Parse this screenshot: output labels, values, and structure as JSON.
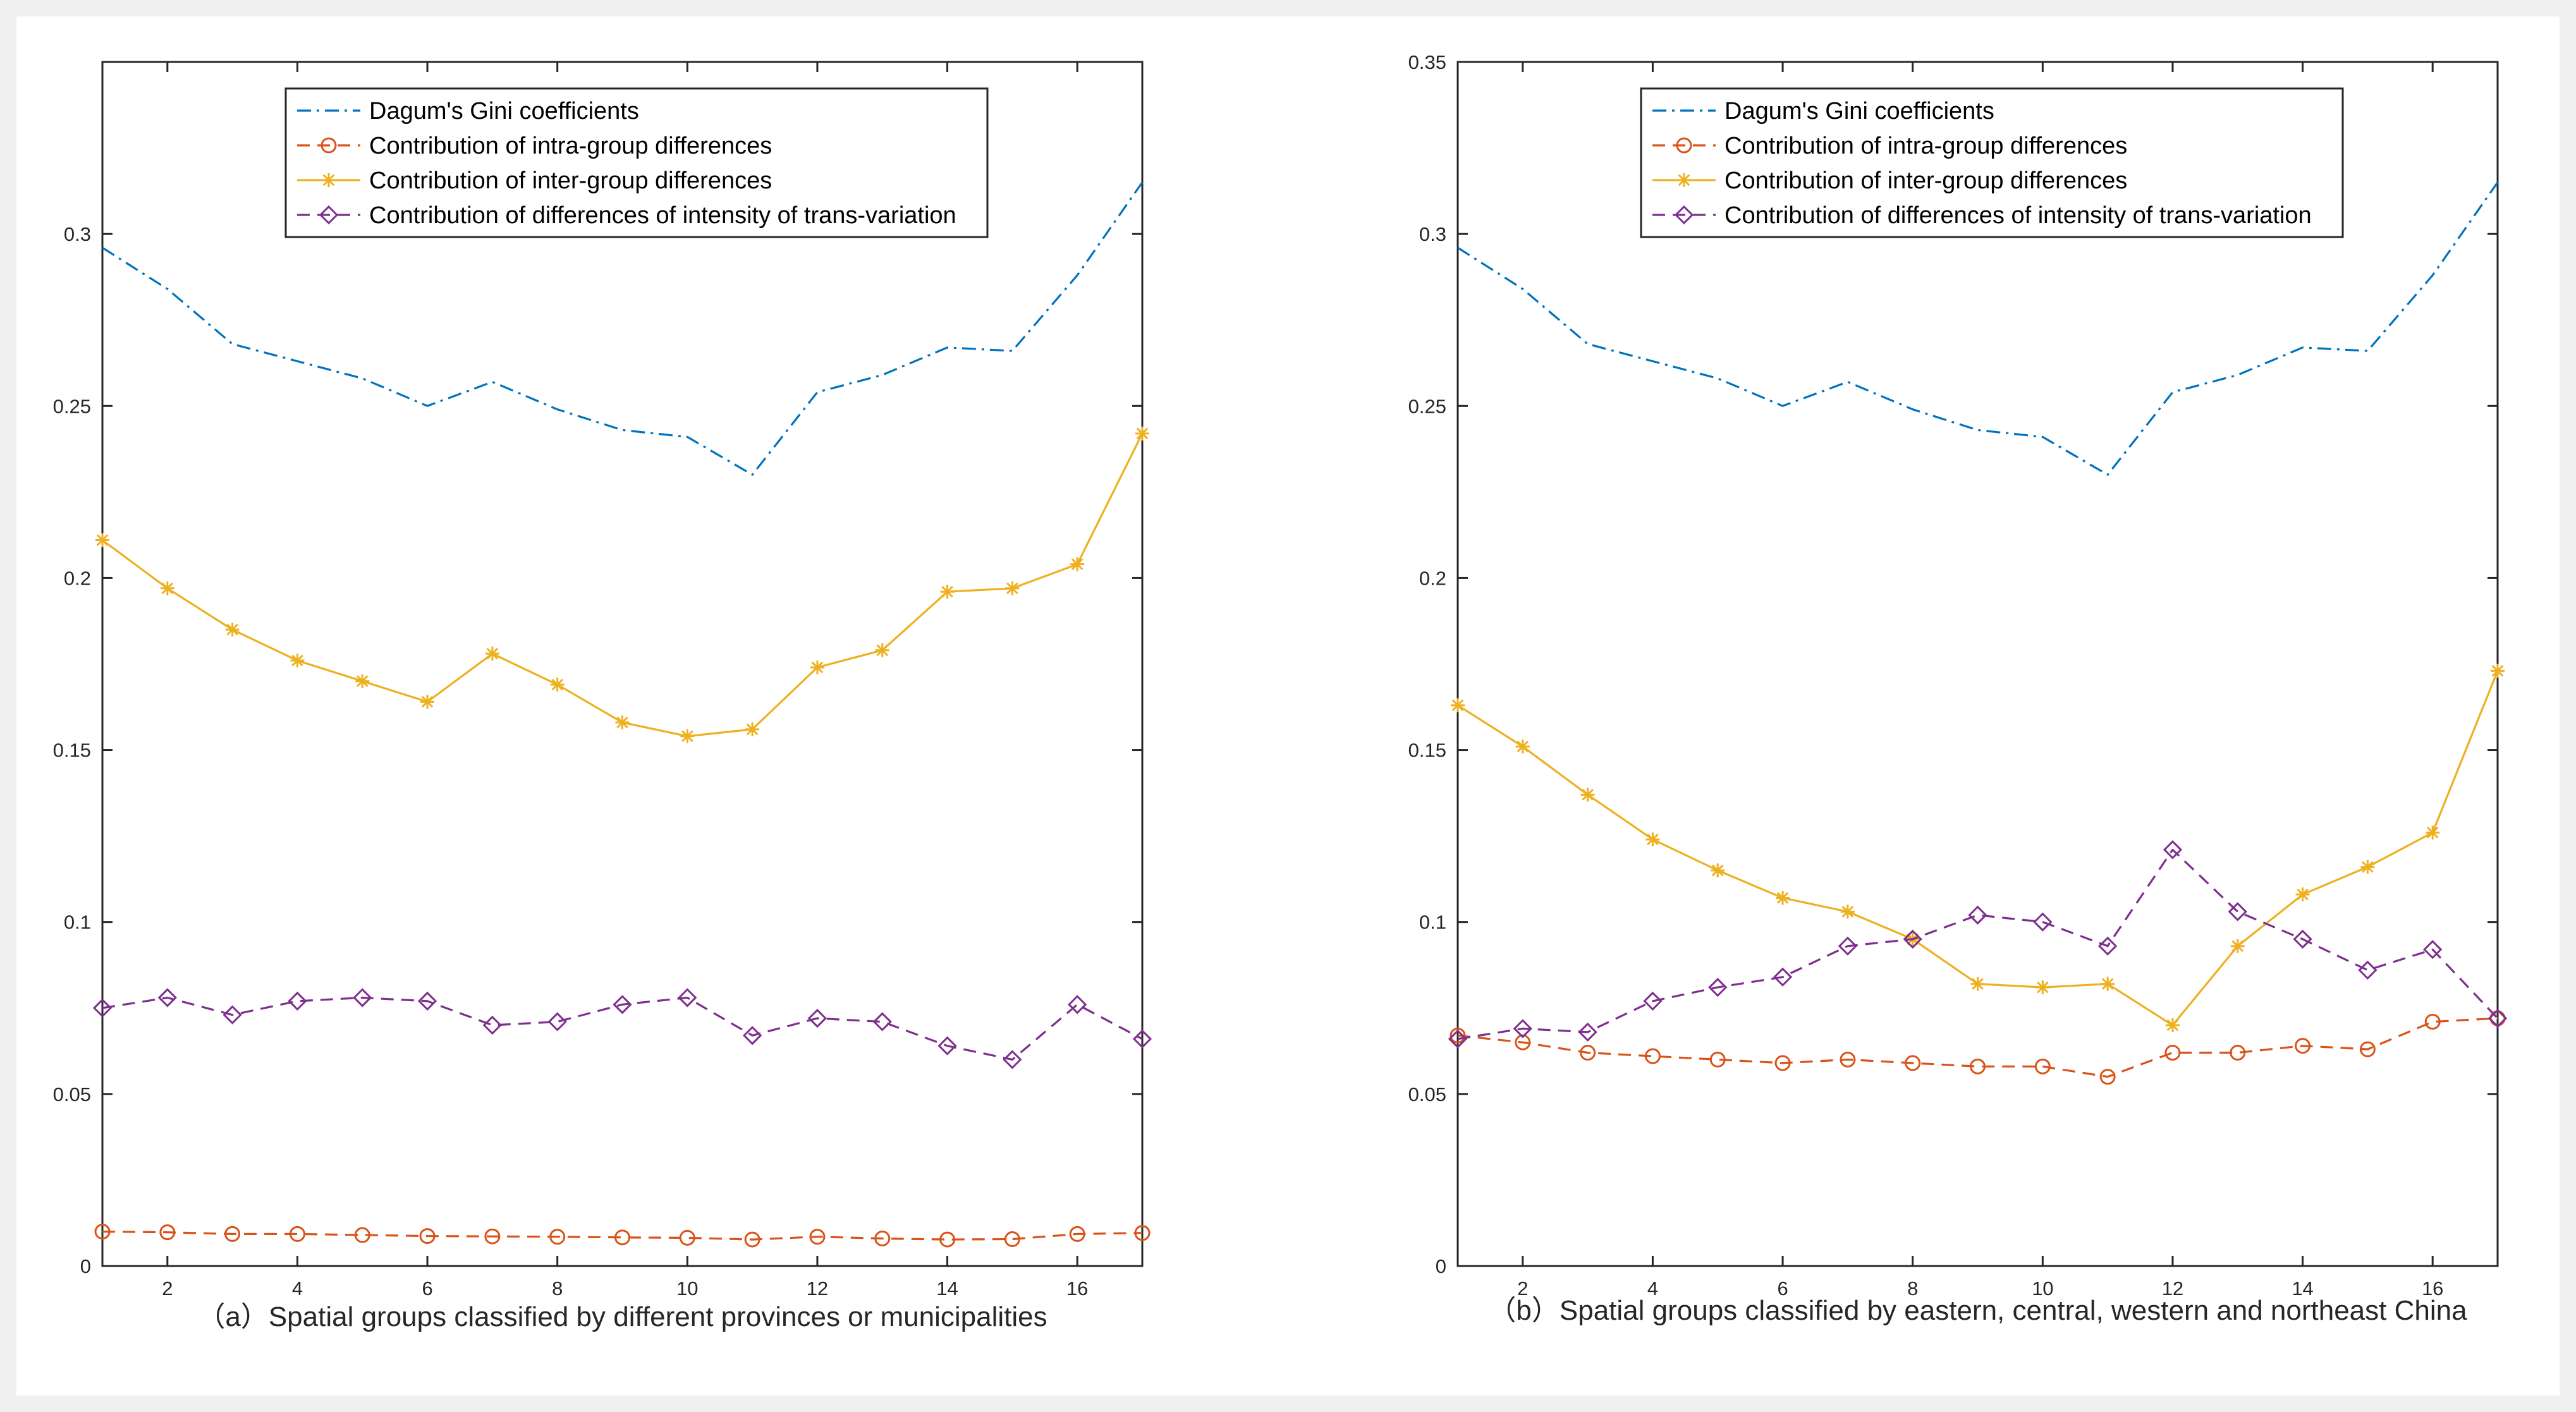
{
  "colors": {
    "gini": "#0072BD",
    "intra": "#D95319",
    "inter": "#EDB120",
    "trans": "#7E2F8E",
    "axis": "#262626"
  },
  "chart_data": [
    {
      "type": "line",
      "id": "a",
      "caption": "（a）Spatial groups classified by different provinces or municipalities",
      "xlim": [
        1,
        17
      ],
      "ylim": [
        0,
        0.35
      ],
      "xticks": [
        2,
        4,
        6,
        8,
        10,
        12,
        14,
        16
      ],
      "xtick_labels": [
        "2",
        "4",
        "6",
        "8",
        "10",
        "12",
        "14",
        "16"
      ],
      "yticks": [
        0,
        0.05,
        0.1,
        0.15,
        0.2,
        0.25,
        0.3
      ],
      "ytick_labels": [
        "0",
        "0.05",
        "0.1",
        "0.15",
        "0.2",
        "0.25",
        "0.3"
      ],
      "x": [
        1,
        2,
        3,
        4,
        5,
        6,
        7,
        8,
        9,
        10,
        11,
        12,
        13,
        14,
        15,
        16,
        17
      ],
      "legend_location": "top-center",
      "series": [
        {
          "key": "gini",
          "name": "Dagum's Gini coefficients",
          "style": "dashdot",
          "marker": "none",
          "values": [
            0.296,
            0.284,
            0.268,
            0.263,
            0.258,
            0.25,
            0.257,
            0.249,
            0.243,
            0.241,
            0.23,
            0.254,
            0.259,
            0.267,
            0.266,
            0.288,
            0.315
          ]
        },
        {
          "key": "intra",
          "name": "Contribution of intra-group differences",
          "style": "dashed",
          "marker": "circle",
          "values": [
            0.01,
            0.0098,
            0.0093,
            0.0093,
            0.009,
            0.0087,
            0.0086,
            0.0085,
            0.0083,
            0.0082,
            0.0077,
            0.0085,
            0.008,
            0.0077,
            0.0078,
            0.0093,
            0.0096
          ]
        },
        {
          "key": "inter",
          "name": "Contribution of inter-group differences",
          "style": "solid",
          "marker": "star",
          "values": [
            0.211,
            0.197,
            0.185,
            0.176,
            0.17,
            0.164,
            0.178,
            0.169,
            0.158,
            0.154,
            0.156,
            0.174,
            0.179,
            0.196,
            0.197,
            0.204,
            0.242
          ]
        },
        {
          "key": "trans",
          "name": "Contribution of differences of intensity of trans-variation",
          "style": "dashed",
          "marker": "diamond",
          "values": [
            0.075,
            0.078,
            0.073,
            0.077,
            0.078,
            0.077,
            0.07,
            0.071,
            0.076,
            0.078,
            0.067,
            0.072,
            0.071,
            0.064,
            0.06,
            0.076,
            0.066
          ]
        }
      ]
    },
    {
      "type": "line",
      "id": "b",
      "caption": "（b）Spatial groups classified by eastern, central, western and northeast China",
      "xlim": [
        1,
        17
      ],
      "ylim": [
        0,
        0.35
      ],
      "xticks": [
        2,
        4,
        6,
        8,
        10,
        12,
        14,
        16
      ],
      "xtick_labels": [
        "2",
        "4",
        "6",
        "8",
        "10",
        "12",
        "14",
        "16"
      ],
      "yticks": [
        0,
        0.05,
        0.1,
        0.15,
        0.2,
        0.25,
        0.3,
        0.35
      ],
      "ytick_labels": [
        "0",
        "0.05",
        "0.1",
        "0.15",
        "0.2",
        "0.25",
        "0.3",
        "0.35"
      ],
      "x": [
        1,
        2,
        3,
        4,
        5,
        6,
        7,
        8,
        9,
        10,
        11,
        12,
        13,
        14,
        15,
        16,
        17
      ],
      "legend_location": "top-center",
      "series": [
        {
          "key": "gini",
          "name": "Dagum's Gini coefficients",
          "style": "dashdot",
          "marker": "none",
          "values": [
            0.296,
            0.284,
            0.268,
            0.263,
            0.258,
            0.25,
            0.257,
            0.249,
            0.243,
            0.241,
            0.23,
            0.254,
            0.259,
            0.267,
            0.266,
            0.288,
            0.315
          ]
        },
        {
          "key": "intra",
          "name": "Contribution of intra-group differences",
          "style": "dashed",
          "marker": "circle",
          "values": [
            0.067,
            0.065,
            0.062,
            0.061,
            0.06,
            0.059,
            0.06,
            0.059,
            0.058,
            0.058,
            0.055,
            0.062,
            0.062,
            0.064,
            0.063,
            0.071,
            0.072
          ]
        },
        {
          "key": "inter",
          "name": "Contribution of inter-group differences",
          "style": "solid",
          "marker": "star",
          "values": [
            0.163,
            0.151,
            0.137,
            0.124,
            0.115,
            0.107,
            0.103,
            0.095,
            0.082,
            0.081,
            0.082,
            0.07,
            0.093,
            0.108,
            0.116,
            0.126,
            0.173
          ]
        },
        {
          "key": "trans",
          "name": "Contribution of differences of intensity of trans-variation",
          "style": "dashed",
          "marker": "diamond",
          "values": [
            0.066,
            0.069,
            0.068,
            0.077,
            0.081,
            0.084,
            0.093,
            0.095,
            0.102,
            0.1,
            0.093,
            0.121,
            0.103,
            0.095,
            0.086,
            0.092,
            0.072
          ]
        }
      ]
    }
  ]
}
